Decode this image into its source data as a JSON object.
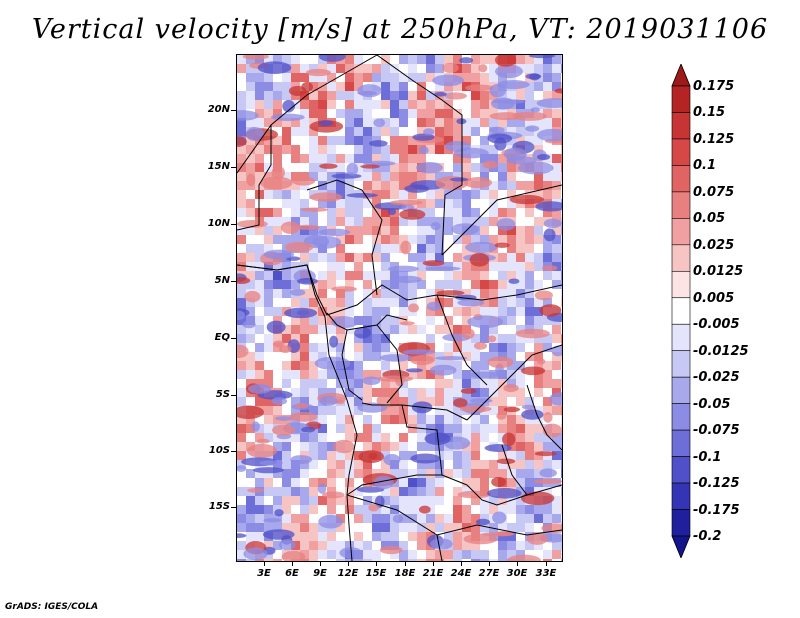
{
  "title": "Vertical velocity [m/s] at 250hPa, VT: 2019031106",
  "footer": "GrADS: IGES/COLA",
  "map": {
    "lat_labels": [
      "20N",
      "15N",
      "10N",
      "5N",
      "EQ",
      "5S",
      "10S",
      "15S"
    ],
    "lon_labels": [
      "3E",
      "6E",
      "9E",
      "12E",
      "15E",
      "18E",
      "21E",
      "24E",
      "27E",
      "30E",
      "33E"
    ],
    "lon_range": [
      0,
      34.5
    ],
    "lat_range": [
      -20,
      24.5
    ]
  },
  "colorbar": {
    "labels": [
      "0.175",
      "0.15",
      "0.125",
      "0.1",
      "0.075",
      "0.05",
      "0.025",
      "0.0125",
      "0.005",
      "-0.005",
      "-0.0125",
      "-0.025",
      "-0.05",
      "-0.075",
      "-0.1",
      "-0.125",
      "-0.175",
      "-0.2"
    ],
    "colors": [
      "#9e1a1a",
      "#b52424",
      "#c73434",
      "#d64848",
      "#e06464",
      "#e88080",
      "#f0a0a0",
      "#f7c4c4",
      "#fce4e4",
      "#ffffff",
      "#e4e4fc",
      "#c8c8f4",
      "#a8a8ec",
      "#8c8ce4",
      "#6e6ed8",
      "#5050c8",
      "#3434b4",
      "#20209e",
      "#14148c"
    ]
  }
}
